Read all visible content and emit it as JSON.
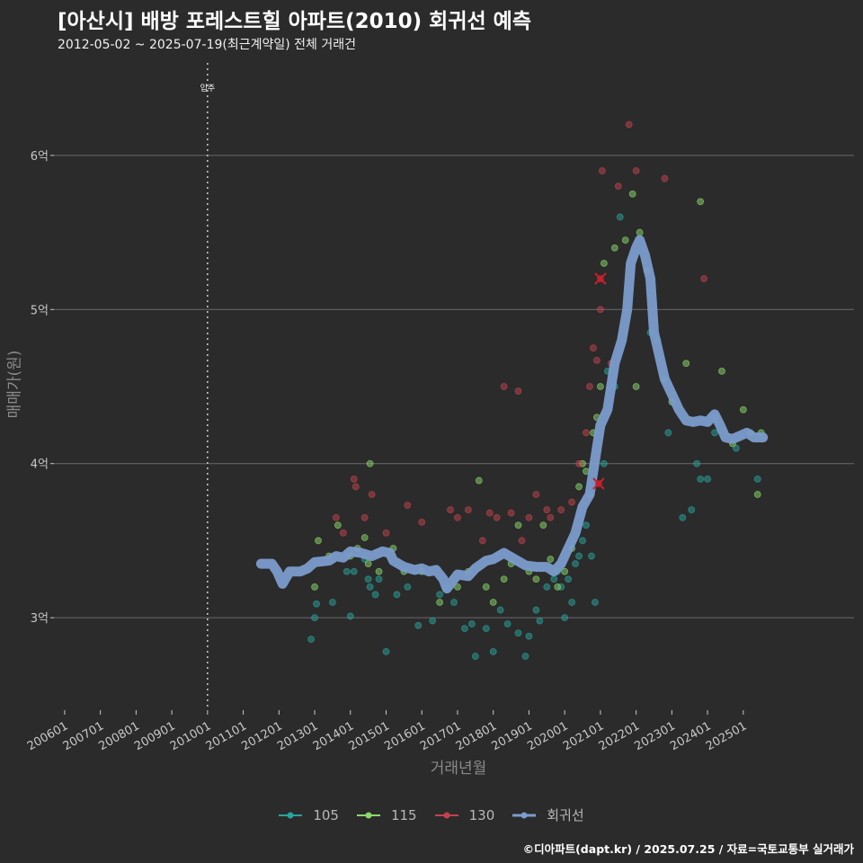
{
  "header": {
    "title": "[아산시] 배방 포레스트힐 아파트(2010) 회귀선 예측",
    "subtitle": "2012-05-02 ~ 2025-07-19(최근계약일) 전체 거래건"
  },
  "footer": {
    "credit": "©디아파트(dapt.kr) / 2025.07.25 / 자료=국토교통부 실거래가"
  },
  "colors": {
    "background": "#2b2b2b",
    "grid": "#6a6a6a",
    "s105": "#2aa39a",
    "s115": "#8ad96a",
    "s130": "#c2434e",
    "regression": "#7b9ccc",
    "marker": "#cc1f2a"
  },
  "chart_data": {
    "type": "scatter",
    "title": "[아산시] 배방 포레스트힐 아파트(2010) 회귀선 예측",
    "subtitle": "2012-05-02 ~ 2025-07-19(최근계약일) 전체 거래건",
    "xlabel": "거래년월",
    "ylabel": "매매가(원)",
    "x_ticks": [
      "200601",
      "200701",
      "200801",
      "200901",
      "201001",
      "201101",
      "201201",
      "201301",
      "201401",
      "201501",
      "201601",
      "201701",
      "201801",
      "201901",
      "202001",
      "202101",
      "202201",
      "202301",
      "202401",
      "202501"
    ],
    "y_ticks": [
      {
        "value": 3,
        "label": "3억"
      },
      {
        "value": 4,
        "label": "4억"
      },
      {
        "value": 5,
        "label": "5억"
      },
      {
        "value": 6,
        "label": "6억"
      }
    ],
    "xlim": [
      2005.7,
      2028.1
    ],
    "ylim": [
      2.4,
      6.6
    ],
    "vline": {
      "x": 2010.0,
      "label": "입주"
    },
    "legend": [
      "105",
      "115",
      "130",
      "회귀선"
    ],
    "legend_position": "bottom",
    "marked_points": [
      [
        2021.0,
        5.2
      ],
      [
        2020.95,
        3.87
      ]
    ],
    "series": [
      {
        "name": "105",
        "points": [
          [
            2012.9,
            2.86
          ],
          [
            2013.0,
            3.0
          ],
          [
            2013.05,
            3.09
          ],
          [
            2013.5,
            3.1
          ],
          [
            2013.9,
            3.3
          ],
          [
            2014.0,
            3.01
          ],
          [
            2014.1,
            3.3
          ],
          [
            2014.4,
            3.38
          ],
          [
            2014.5,
            3.25
          ],
          [
            2014.55,
            3.2
          ],
          [
            2014.7,
            3.15
          ],
          [
            2014.8,
            3.25
          ],
          [
            2015.0,
            2.78
          ],
          [
            2015.3,
            3.15
          ],
          [
            2015.6,
            3.2
          ],
          [
            2015.9,
            2.95
          ],
          [
            2016.3,
            2.98
          ],
          [
            2016.5,
            3.15
          ],
          [
            2016.7,
            3.2
          ],
          [
            2016.9,
            3.1
          ],
          [
            2017.2,
            2.93
          ],
          [
            2017.4,
            2.96
          ],
          [
            2017.5,
            2.75
          ],
          [
            2017.8,
            2.93
          ],
          [
            2018.0,
            2.78
          ],
          [
            2018.2,
            3.05
          ],
          [
            2018.4,
            2.96
          ],
          [
            2018.7,
            2.9
          ],
          [
            2018.9,
            2.75
          ],
          [
            2019.0,
            2.88
          ],
          [
            2019.2,
            3.05
          ],
          [
            2019.3,
            2.98
          ],
          [
            2019.5,
            3.2
          ],
          [
            2019.7,
            3.25
          ],
          [
            2019.8,
            3.3
          ],
          [
            2019.9,
            3.2
          ],
          [
            2020.0,
            3.0
          ],
          [
            2020.1,
            3.25
          ],
          [
            2020.2,
            3.1
          ],
          [
            2020.3,
            3.35
          ],
          [
            2020.4,
            3.4
          ],
          [
            2020.5,
            3.5
          ],
          [
            2020.6,
            3.6
          ],
          [
            2020.75,
            3.4
          ],
          [
            2020.85,
            3.1
          ],
          [
            2021.1,
            4.0
          ],
          [
            2021.2,
            4.6
          ],
          [
            2021.4,
            4.5
          ],
          [
            2021.55,
            5.6
          ],
          [
            2022.4,
            4.85
          ],
          [
            2022.6,
            4.8
          ],
          [
            2022.9,
            4.2
          ],
          [
            2023.3,
            3.65
          ],
          [
            2023.55,
            3.7
          ],
          [
            2023.7,
            4.0
          ],
          [
            2023.8,
            3.9
          ],
          [
            2024.0,
            3.9
          ],
          [
            2024.2,
            4.2
          ],
          [
            2024.8,
            4.1
          ],
          [
            2025.4,
            3.9
          ]
        ]
      },
      {
        "name": "115",
        "points": [
          [
            2013.0,
            3.2
          ],
          [
            2013.1,
            3.5
          ],
          [
            2013.4,
            3.4
          ],
          [
            2013.65,
            3.6
          ],
          [
            2014.0,
            3.4
          ],
          [
            2014.2,
            3.45
          ],
          [
            2014.4,
            3.52
          ],
          [
            2014.5,
            3.35
          ],
          [
            2014.55,
            4.0
          ],
          [
            2014.8,
            3.3
          ],
          [
            2015.2,
            3.45
          ],
          [
            2015.5,
            3.3
          ],
          [
            2016.0,
            3.3
          ],
          [
            2016.5,
            3.1
          ],
          [
            2017.0,
            3.2
          ],
          [
            2017.3,
            3.3
          ],
          [
            2017.6,
            3.89
          ],
          [
            2017.8,
            3.2
          ],
          [
            2018.0,
            3.1
          ],
          [
            2018.3,
            3.25
          ],
          [
            2018.5,
            3.35
          ],
          [
            2018.7,
            3.6
          ],
          [
            2019.0,
            3.3
          ],
          [
            2019.2,
            3.25
          ],
          [
            2019.4,
            3.6
          ],
          [
            2019.6,
            3.38
          ],
          [
            2019.8,
            3.2
          ],
          [
            2020.0,
            3.3
          ],
          [
            2020.2,
            3.45
          ],
          [
            2020.4,
            3.85
          ],
          [
            2020.5,
            4.0
          ],
          [
            2020.6,
            3.95
          ],
          [
            2020.7,
            3.8
          ],
          [
            2020.8,
            4.2
          ],
          [
            2020.9,
            4.3
          ],
          [
            2021.0,
            4.5
          ],
          [
            2021.1,
            5.3
          ],
          [
            2021.4,
            5.4
          ],
          [
            2021.7,
            5.45
          ],
          [
            2021.9,
            5.75
          ],
          [
            2022.0,
            4.5
          ],
          [
            2022.1,
            5.5
          ],
          [
            2022.3,
            5.25
          ],
          [
            2022.8,
            4.55
          ],
          [
            2023.0,
            4.4
          ],
          [
            2023.4,
            4.65
          ],
          [
            2023.8,
            5.7
          ],
          [
            2024.2,
            4.3
          ],
          [
            2024.4,
            4.6
          ],
          [
            2024.7,
            4.13
          ],
          [
            2025.0,
            4.35
          ],
          [
            2025.2,
            4.2
          ],
          [
            2025.4,
            3.8
          ],
          [
            2025.5,
            4.2
          ]
        ]
      },
      {
        "name": "130",
        "points": [
          [
            2013.6,
            3.65
          ],
          [
            2013.8,
            3.55
          ],
          [
            2014.1,
            3.9
          ],
          [
            2014.15,
            3.85
          ],
          [
            2014.4,
            3.65
          ],
          [
            2014.6,
            3.8
          ],
          [
            2015.0,
            3.55
          ],
          [
            2015.6,
            3.73
          ],
          [
            2016.0,
            3.62
          ],
          [
            2016.8,
            3.7
          ],
          [
            2017.0,
            3.65
          ],
          [
            2017.3,
            3.7
          ],
          [
            2017.7,
            3.5
          ],
          [
            2017.9,
            3.68
          ],
          [
            2018.1,
            3.65
          ],
          [
            2018.3,
            4.5
          ],
          [
            2018.5,
            3.68
          ],
          [
            2018.7,
            4.47
          ],
          [
            2018.8,
            3.5
          ],
          [
            2019.0,
            3.65
          ],
          [
            2019.2,
            3.8
          ],
          [
            2019.5,
            3.7
          ],
          [
            2019.6,
            3.65
          ],
          [
            2019.9,
            3.7
          ],
          [
            2020.2,
            3.75
          ],
          [
            2020.4,
            4.0
          ],
          [
            2020.6,
            4.2
          ],
          [
            2020.7,
            4.5
          ],
          [
            2020.8,
            4.75
          ],
          [
            2020.9,
            4.67
          ],
          [
            2021.0,
            5.0
          ],
          [
            2021.05,
            5.9
          ],
          [
            2021.3,
            4.65
          ],
          [
            2021.5,
            5.8
          ],
          [
            2021.8,
            6.2
          ],
          [
            2022.0,
            5.9
          ],
          [
            2022.8,
            5.85
          ],
          [
            2023.9,
            5.2
          ]
        ]
      }
    ],
    "regression": [
      [
        2011.5,
        3.35
      ],
      [
        2011.8,
        3.35
      ],
      [
        2011.95,
        3.3
      ],
      [
        2012.1,
        3.22
      ],
      [
        2012.3,
        3.3
      ],
      [
        2012.6,
        3.3
      ],
      [
        2012.8,
        3.32
      ],
      [
        2013.0,
        3.36
      ],
      [
        2013.4,
        3.37
      ],
      [
        2013.6,
        3.4
      ],
      [
        2013.8,
        3.39
      ],
      [
        2014.0,
        3.43
      ],
      [
        2014.3,
        3.42
      ],
      [
        2014.6,
        3.4
      ],
      [
        2014.9,
        3.43
      ],
      [
        2015.1,
        3.42
      ],
      [
        2015.2,
        3.37
      ],
      [
        2015.5,
        3.33
      ],
      [
        2015.8,
        3.31
      ],
      [
        2016.0,
        3.32
      ],
      [
        2016.2,
        3.3
      ],
      [
        2016.4,
        3.31
      ],
      [
        2016.6,
        3.25
      ],
      [
        2016.7,
        3.19
      ],
      [
        2016.9,
        3.25
      ],
      [
        2017.0,
        3.28
      ],
      [
        2017.3,
        3.27
      ],
      [
        2017.5,
        3.32
      ],
      [
        2017.8,
        3.37
      ],
      [
        2018.0,
        3.38
      ],
      [
        2018.3,
        3.42
      ],
      [
        2018.6,
        3.38
      ],
      [
        2018.9,
        3.34
      ],
      [
        2019.2,
        3.33
      ],
      [
        2019.5,
        3.33
      ],
      [
        2019.7,
        3.3
      ],
      [
        2019.9,
        3.35
      ],
      [
        2020.1,
        3.45
      ],
      [
        2020.3,
        3.55
      ],
      [
        2020.5,
        3.72
      ],
      [
        2020.7,
        3.8
      ],
      [
        2020.9,
        4.1
      ],
      [
        2021.0,
        4.25
      ],
      [
        2021.2,
        4.35
      ],
      [
        2021.4,
        4.65
      ],
      [
        2021.6,
        4.8
      ],
      [
        2021.75,
        5.0
      ],
      [
        2021.85,
        5.3
      ],
      [
        2022.0,
        5.4
      ],
      [
        2022.1,
        5.45
      ],
      [
        2022.25,
        5.35
      ],
      [
        2022.4,
        5.2
      ],
      [
        2022.5,
        4.85
      ],
      [
        2022.65,
        4.7
      ],
      [
        2022.8,
        4.55
      ],
      [
        2023.0,
        4.45
      ],
      [
        2023.2,
        4.35
      ],
      [
        2023.4,
        4.28
      ],
      [
        2023.6,
        4.27
      ],
      [
        2023.8,
        4.28
      ],
      [
        2024.0,
        4.27
      ],
      [
        2024.2,
        4.32
      ],
      [
        2024.35,
        4.25
      ],
      [
        2024.5,
        4.17
      ],
      [
        2024.7,
        4.16
      ],
      [
        2024.9,
        4.18
      ],
      [
        2025.1,
        4.2
      ],
      [
        2025.3,
        4.17
      ],
      [
        2025.55,
        4.17
      ]
    ]
  }
}
